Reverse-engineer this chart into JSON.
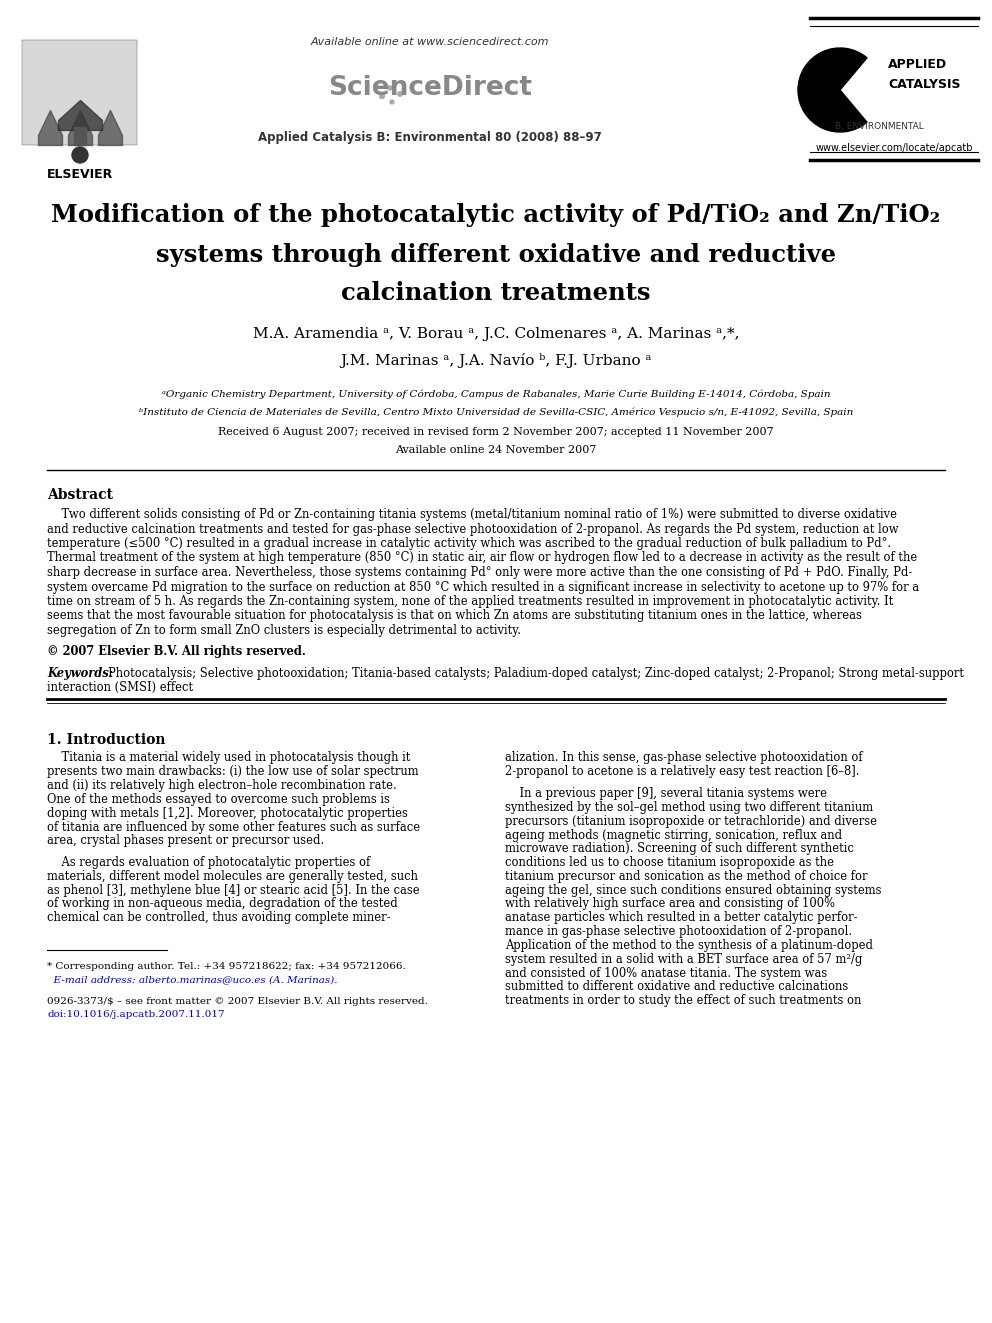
{
  "bg_color": "#ffffff",
  "title_line1": "Modification of the photocatalytic activity of Pd/TiO₂ and Zn/TiO₂",
  "title_line2": "systems through different oxidative and reductive",
  "title_line3": "calcination treatments",
  "authors_line1": "M.A. Aramendia ᵃ, V. Borau ᵃ, J.C. Colmenares ᵃ, A. Marinas ᵃ,*,",
  "authors_line2": "J.M. Marinas ᵃ, J.A. Navío ᵇ, F.J. Urbano ᵃ",
  "affil_a": "ᵃOrganic Chemistry Department, University of Córdoba, Campus de Rabanales, Marie Curie Building E-14014, Córdoba, Spain",
  "affil_b": "ᵇInstituto de Ciencia de Materiales de Sevilla, Centro Mixto Universidad de Sevilla-CSIC, Américo Vespucio s/n, E-41092, Sevilla, Spain",
  "received": "Received 6 August 2007; received in revised form 2 November 2007; accepted 11 November 2007",
  "available": "Available online 24 November 2007",
  "header_url": "Available online at www.sciencedirect.com",
  "journal_line": "Applied Catalysis B: Environmental 80 (2008) 88–97",
  "elsevier_text": "ELSEVIER",
  "website": "www.elsevier.com/locate/apcatb",
  "abstract_title": "Abstract",
  "copyright": "© 2007 Elsevier B.V. All rights reserved.",
  "keywords_label": "Keywords:",
  "section1_title": "1. Introduction",
  "footnote1": "* Corresponding author. Tel.: +34 957218622; fax: +34 957212066.",
  "footnote2": "  E-mail address: alberto.marinas@uco.es (A. Marinas).",
  "footnote3": "0926-3373/$ – see front matter © 2007 Elsevier B.V. All rights reserved.",
  "footnote4": "doi:10.1016/j.apcatb.2007.11.017",
  "sciencedirect_color": "#888888",
  "link_color": "#0000cc"
}
